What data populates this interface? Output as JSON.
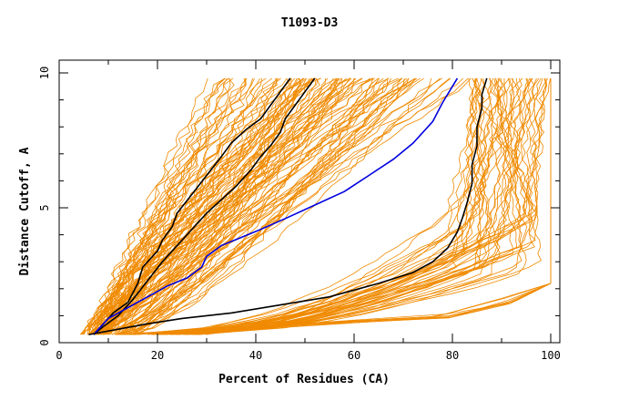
{
  "chart_data": {
    "type": "line",
    "title": "T1093-D3",
    "xlabel": "Percent of Residues (CA)",
    "ylabel": "Distance Cutoff, A",
    "xlim": [
      0,
      100
    ],
    "ylim": [
      0,
      10
    ],
    "xticks": [
      0,
      20,
      40,
      60,
      80,
      100
    ],
    "yticks": [
      0,
      5,
      10
    ],
    "colors": {
      "background_models": "#f08a00",
      "highlight_black": "#000000",
      "highlight_blue": "#0000e0",
      "axis": "#000000"
    },
    "series": [
      {
        "color": "black",
        "points": [
          [
            7,
            0.3
          ],
          [
            9,
            0.7
          ],
          [
            11,
            1.1
          ],
          [
            14,
            1.5
          ],
          [
            16,
            2.2
          ],
          [
            17,
            2.8
          ],
          [
            20,
            3.4
          ],
          [
            21,
            3.8
          ],
          [
            23,
            4.3
          ],
          [
            24,
            4.8
          ],
          [
            27,
            5.5
          ],
          [
            30,
            6.2
          ],
          [
            33,
            6.9
          ],
          [
            35,
            7.4
          ],
          [
            38,
            7.9
          ],
          [
            41,
            8.3
          ],
          [
            43,
            8.8
          ],
          [
            45,
            9.3
          ],
          [
            47,
            9.8
          ]
        ]
      },
      {
        "color": "black",
        "points": [
          [
            7,
            0.3
          ],
          [
            9,
            0.6
          ],
          [
            12,
            1.0
          ],
          [
            15,
            1.6
          ],
          [
            18,
            2.3
          ],
          [
            21,
            3.0
          ],
          [
            24,
            3.6
          ],
          [
            27,
            4.2
          ],
          [
            30,
            4.8
          ],
          [
            33,
            5.3
          ],
          [
            36,
            5.8
          ],
          [
            39,
            6.4
          ],
          [
            41,
            6.9
          ],
          [
            43,
            7.3
          ],
          [
            45,
            7.8
          ],
          [
            46,
            8.3
          ],
          [
            48,
            8.8
          ],
          [
            50,
            9.3
          ],
          [
            52,
            9.8
          ]
        ]
      },
      {
        "color": "blue",
        "points": [
          [
            7,
            0.3
          ],
          [
            10,
            0.9
          ],
          [
            14,
            1.3
          ],
          [
            18,
            1.7
          ],
          [
            22,
            2.1
          ],
          [
            26,
            2.4
          ],
          [
            29,
            2.8
          ],
          [
            30,
            3.2
          ],
          [
            33,
            3.6
          ],
          [
            37,
            3.9
          ],
          [
            41,
            4.2
          ],
          [
            46,
            4.6
          ],
          [
            52,
            5.1
          ],
          [
            58,
            5.6
          ],
          [
            63,
            6.2
          ],
          [
            68,
            6.8
          ],
          [
            72,
            7.4
          ],
          [
            76,
            8.2
          ],
          [
            78,
            8.9
          ],
          [
            81,
            9.8
          ]
        ]
      },
      {
        "color": "black",
        "points": [
          [
            6,
            0.3
          ],
          [
            12,
            0.5
          ],
          [
            18,
            0.7
          ],
          [
            25,
            0.9
          ],
          [
            35,
            1.1
          ],
          [
            45,
            1.4
          ],
          [
            55,
            1.7
          ],
          [
            65,
            2.2
          ],
          [
            72,
            2.6
          ],
          [
            76,
            3.0
          ],
          [
            79,
            3.5
          ],
          [
            81,
            4.1
          ],
          [
            82,
            4.6
          ],
          [
            83,
            5.2
          ],
          [
            84,
            5.9
          ],
          [
            84,
            6.6
          ],
          [
            85,
            7.3
          ],
          [
            85,
            8.0
          ],
          [
            86,
            8.7
          ],
          [
            86,
            9.2
          ],
          [
            87,
            9.8
          ]
        ]
      }
    ]
  }
}
